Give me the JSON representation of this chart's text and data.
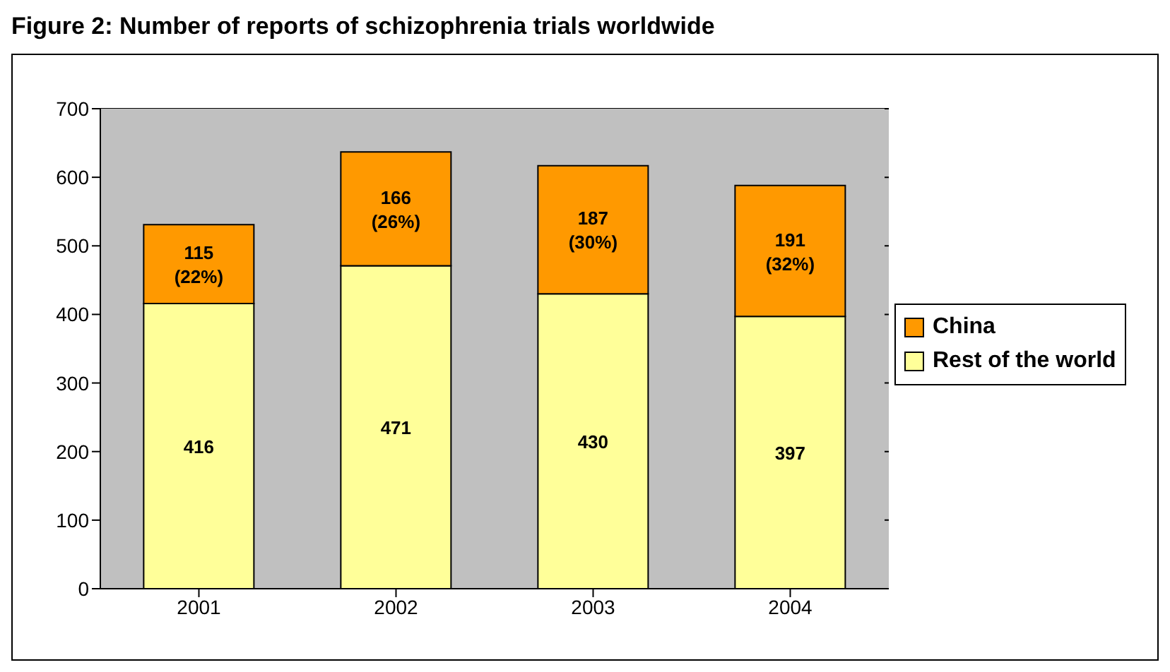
{
  "chart_data": {
    "type": "bar",
    "title": "Figure 2: Number of reports of schizophrenia trials worldwide",
    "categories": [
      "2001",
      "2002",
      "2003",
      "2004"
    ],
    "stacked": true,
    "series": [
      {
        "name": "Rest of the world",
        "color": "#ffff99",
        "values": [
          416,
          471,
          430,
          397
        ],
        "value_labels": [
          "416",
          "471",
          "430",
          "397"
        ]
      },
      {
        "name": "China",
        "color": "#ff9900",
        "values": [
          115,
          166,
          187,
          191
        ],
        "value_labels": [
          "115\n(22%)",
          "166\n(26%)",
          "187\n(30%)",
          "191\n(32%)"
        ]
      }
    ],
    "ylim": [
      0,
      700
    ],
    "yticks": [
      0,
      100,
      200,
      300,
      400,
      500,
      600,
      700
    ],
    "grid": "y",
    "legend": "right"
  }
}
